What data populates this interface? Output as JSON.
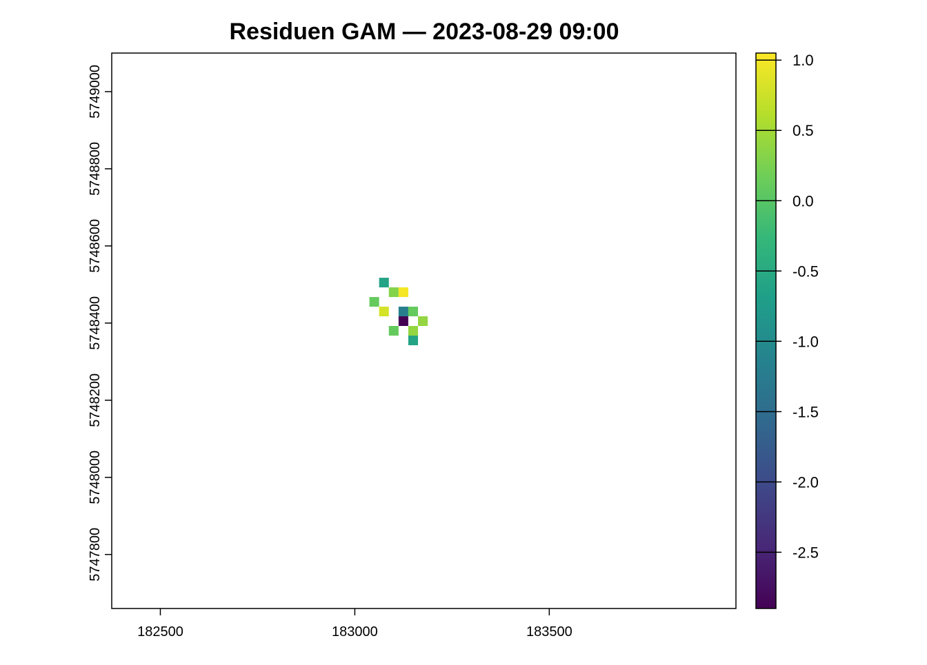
{
  "chart_data": {
    "type": "heatmap",
    "title": "Residuen GAM — 2023-08-29 09:00",
    "xlabel": "",
    "ylabel": "",
    "xlim": [
      182375,
      183980
    ],
    "ylim": [
      5747660,
      5749100
    ],
    "x_ticks": [
      {
        "value": 182500,
        "label": "182500"
      },
      {
        "value": 183000,
        "label": "183000"
      },
      {
        "value": 183500,
        "label": "183500"
      }
    ],
    "y_ticks": [
      {
        "value": 5747800,
        "label": "5747800"
      },
      {
        "value": 5748000,
        "label": "5748000"
      },
      {
        "value": 5748200,
        "label": "5748200"
      },
      {
        "value": 5748400,
        "label": "5748400"
      },
      {
        "value": 5748600,
        "label": "5748600"
      },
      {
        "value": 5748800,
        "label": "5748800"
      },
      {
        "value": 5749000,
        "label": "5749000"
      }
    ],
    "cell_size": 25,
    "cells": [
      {
        "x": 183075,
        "y": 5748505,
        "value": -0.6
      },
      {
        "x": 183100,
        "y": 5748480,
        "value": 0.3
      },
      {
        "x": 183125,
        "y": 5748480,
        "value": 1.0
      },
      {
        "x": 183050,
        "y": 5748455,
        "value": 0.1
      },
      {
        "x": 183075,
        "y": 5748430,
        "value": 0.8
      },
      {
        "x": 183125,
        "y": 5748430,
        "value": -1.2
      },
      {
        "x": 183150,
        "y": 5748430,
        "value": 0.1
      },
      {
        "x": 183125,
        "y": 5748405,
        "value": -2.9
      },
      {
        "x": 183175,
        "y": 5748405,
        "value": 0.4
      },
      {
        "x": 183100,
        "y": 5748380,
        "value": 0.1
      },
      {
        "x": 183150,
        "y": 5748380,
        "value": 0.4
      },
      {
        "x": 183150,
        "y": 5748355,
        "value": -0.6
      }
    ],
    "colorbar": {
      "min": -2.9,
      "max": 1.05,
      "palette": "viridis",
      "stops": [
        "#440154",
        "#482878",
        "#3e4989",
        "#31688e",
        "#26828e",
        "#1f9e89",
        "#35b779",
        "#6ece58",
        "#b5de2b",
        "#fde725"
      ],
      "ticks": [
        {
          "value": 1.0,
          "label": "1.0"
        },
        {
          "value": 0.5,
          "label": "0.5"
        },
        {
          "value": 0.0,
          "label": "0.0"
        },
        {
          "value": -0.5,
          "label": "-0.5"
        },
        {
          "value": -1.0,
          "label": "-1.0"
        },
        {
          "value": -1.5,
          "label": "-1.5"
        },
        {
          "value": -2.0,
          "label": "-2.0"
        },
        {
          "value": -2.5,
          "label": "-2.5"
        }
      ]
    },
    "legend": "right",
    "grid": false
  }
}
